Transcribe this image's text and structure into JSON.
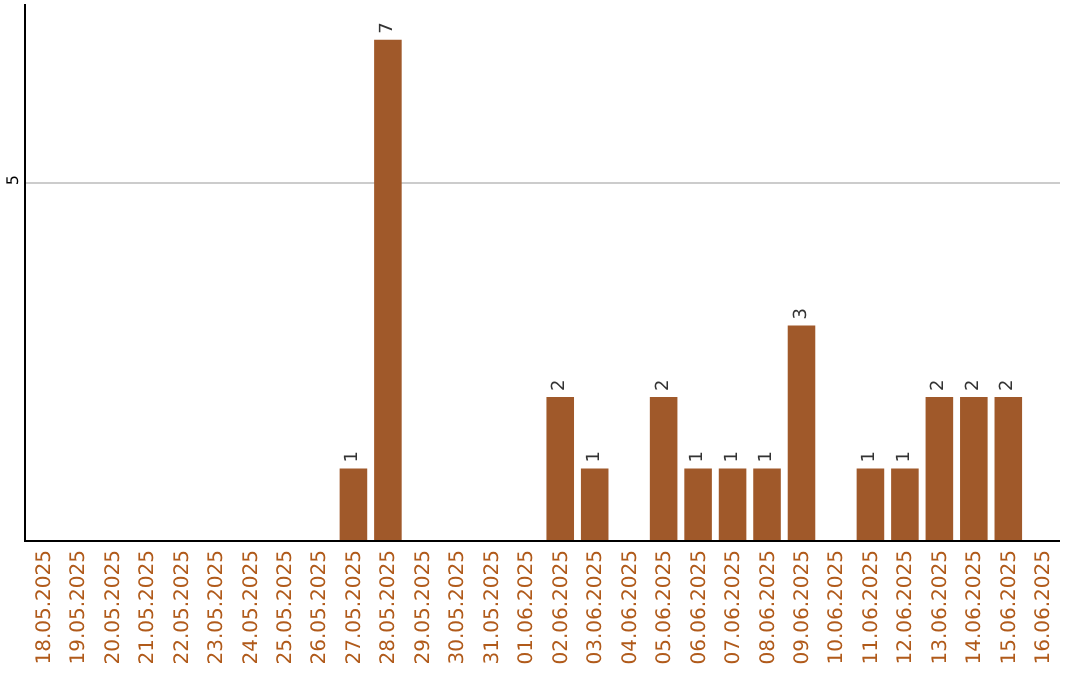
{
  "chart_data": {
    "type": "bar",
    "categories": [
      "18.05.2025",
      "19.05.2025",
      "20.05.2025",
      "21.05.2025",
      "22.05.2025",
      "23.05.2025",
      "24.05.2025",
      "25.05.2025",
      "26.05.2025",
      "27.05.2025",
      "28.05.2025",
      "29.05.2025",
      "30.05.2025",
      "31.05.2025",
      "01.06.2025",
      "02.06.2025",
      "03.06.2025",
      "04.06.2025",
      "05.06.2025",
      "06.06.2025",
      "07.06.2025",
      "08.06.2025",
      "09.06.2025",
      "10.06.2025",
      "11.06.2025",
      "12.06.2025",
      "13.06.2025",
      "14.06.2025",
      "15.06.2025",
      "16.06.2025"
    ],
    "values": [
      0,
      0,
      0,
      0,
      0,
      0,
      0,
      0,
      0,
      1,
      7,
      0,
      0,
      0,
      0,
      2,
      1,
      0,
      2,
      1,
      1,
      1,
      3,
      0,
      1,
      1,
      2,
      2,
      2,
      0
    ],
    "value_labels": [
      null,
      null,
      null,
      null,
      null,
      null,
      null,
      null,
      null,
      "1",
      "7",
      null,
      null,
      null,
      null,
      "2",
      "1",
      null,
      "2",
      "1",
      "1",
      "1",
      "3",
      null,
      "1",
      "1",
      "2",
      "2",
      "2",
      null
    ],
    "color": "#a0592a",
    "ylim": [
      0,
      7.5
    ],
    "yticks": [
      5
    ],
    "grid": "y"
  }
}
